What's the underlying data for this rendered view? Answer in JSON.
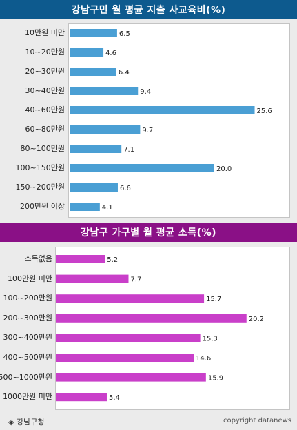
{
  "charts": [
    {
      "title": "강남구민 월 평균 지출 사교육비(%)",
      "color": "#4a9fd4",
      "title_bg": "#0d5a8e",
      "chart_data": {
        "type": "bar",
        "orientation": "horizontal",
        "title": "강남구민 월 평균 지출 사교육비(%)",
        "categories": [
          "10만원 미만",
          "10~20만원",
          "20~30만원",
          "30~40만원",
          "40~60만원",
          "60~80만원",
          "80~100만원",
          "100~150만원",
          "150~200만원",
          "200만원 이상"
        ],
        "values": [
          6.5,
          4.6,
          6.4,
          9.4,
          25.6,
          9.7,
          7.1,
          20.0,
          6.6,
          4.1
        ],
        "value_labels": [
          "6.5",
          "4.6",
          "6.4",
          "9.4",
          "25.6",
          "9.7",
          "7.1",
          "20.0",
          "6.6",
          "4.1"
        ],
        "xlim": [
          0,
          30
        ]
      }
    },
    {
      "title": "강남구 가구별 월 평균 소득(%)",
      "color": "#c93fc9",
      "title_bg": "#8a1086",
      "chart_data": {
        "type": "bar",
        "orientation": "horizontal",
        "title": "강남구 가구별 월 평균 소득(%)",
        "categories": [
          "소득없음",
          "100만원 미만",
          "100~200만원",
          "200~300만원",
          "300~400만원",
          "400~500만원",
          "500~1000만원",
          "1000만원 미만"
        ],
        "values": [
          5.2,
          7.7,
          15.7,
          20.2,
          15.3,
          14.6,
          15.9,
          5.4
        ],
        "value_labels": [
          "5.2",
          "7.7",
          "15.7",
          "20.2",
          "15.3",
          "14.6",
          "15.9",
          "5.4"
        ],
        "xlim": [
          0,
          22.5
        ]
      }
    }
  ],
  "footer": {
    "source": "◈ 강남구청",
    "copyright": "copyright datanews"
  }
}
